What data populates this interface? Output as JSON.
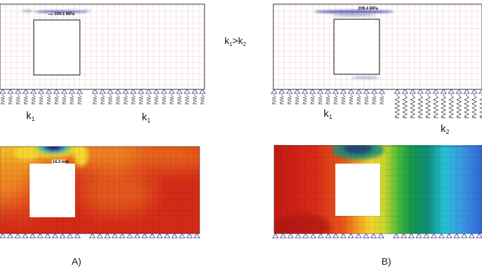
{
  "panel_a": {
    "stress_label": "104.1 MPa",
    "spring_label_left": "k",
    "spring_label_left_sub": "1",
    "spring_label_right": "k",
    "spring_label_right_sub": "1",
    "contour_callout": "14.3 mm",
    "caption": "A)"
  },
  "panel_b": {
    "stress_label": "209.4 MPa",
    "spring_label_left": "k",
    "spring_label_left_sub": "1",
    "spring_label_right": "k",
    "spring_label_right_sub": "2",
    "caption": "B)"
  },
  "comparison": {
    "k": "k",
    "sub1": "1",
    "op": ">",
    "sub2": "2"
  },
  "colors": {
    "mesh_line": "#e2a4a4",
    "beam_outline": "#333333",
    "support": "#3a3a8a",
    "spring_soft": "#555555",
    "spring_stiff": "#333333",
    "stress_glow": "#2a2a9a",
    "contour_red": "#d42a18",
    "contour_orange": "#f08a20",
    "contour_yellow": "#f6d630",
    "contour_green": "#1aa34a",
    "contour_cyan": "#29c8e0",
    "contour_blue": "#2a5cd8",
    "contour_navy": "#1a1a80"
  }
}
